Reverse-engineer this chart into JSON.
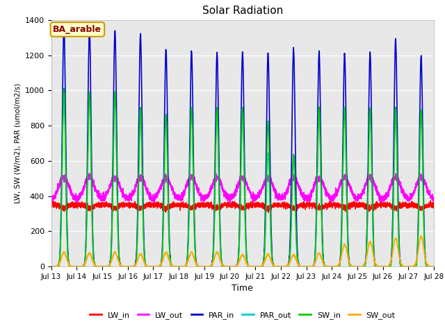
{
  "title": "Solar Radiation",
  "xlabel": "Time",
  "ylabel": "LW, SW (W/m2), PAR (umol/m2/s)",
  "ylim": [
    0,
    1400
  ],
  "legend_labels": [
    "LW_in",
    "LW_out",
    "PAR_in",
    "PAR_out",
    "SW_in",
    "SW_out"
  ],
  "legend_colors": [
    "#ff0000",
    "#ff00ff",
    "#0000cc",
    "#00cccc",
    "#00cc00",
    "#ffaa00"
  ],
  "line_widths": [
    1.0,
    1.0,
    1.2,
    1.0,
    1.2,
    1.2
  ],
  "annotation_text": "BA_arable",
  "annotation_color": "#8b0000",
  "annotation_bg": "#ffffcc",
  "plot_bg": "#e8e8e8",
  "grid_color": "#ffffff",
  "n_days": 15,
  "points_per_day": 288,
  "PAR_in_peaks": [
    1360,
    1345,
    1340,
    1320,
    1230,
    1225,
    1210,
    1215,
    1210,
    1235,
    1220,
    1210,
    1215,
    1290,
    1195
  ],
  "PAR_out_peaks": [
    1010,
    990,
    990,
    900,
    860,
    900,
    900,
    900,
    640,
    635,
    900,
    900,
    900,
    900,
    890
  ],
  "SW_in_peaks": [
    1010,
    990,
    990,
    900,
    860,
    900,
    900,
    900,
    820,
    635,
    900,
    900,
    900,
    900,
    890
  ],
  "SW_out_peaks": [
    80,
    75,
    80,
    70,
    80,
    80,
    80,
    65,
    68,
    65,
    75,
    125,
    140,
    160,
    170
  ],
  "LW_in_base": 350,
  "LW_out_base": 375,
  "x_tick_labels": [
    "Jul 13",
    "Jul 14",
    "Jul 15",
    "Jul 16",
    "Jul 17",
    "Jul 18",
    "Jul 19",
    "Jul 20",
    "Jul 21",
    "Jul 22",
    "Jul 23",
    "Jul 24",
    "Jul 25",
    "Jul 26",
    "Jul 27",
    "Jul 28"
  ]
}
